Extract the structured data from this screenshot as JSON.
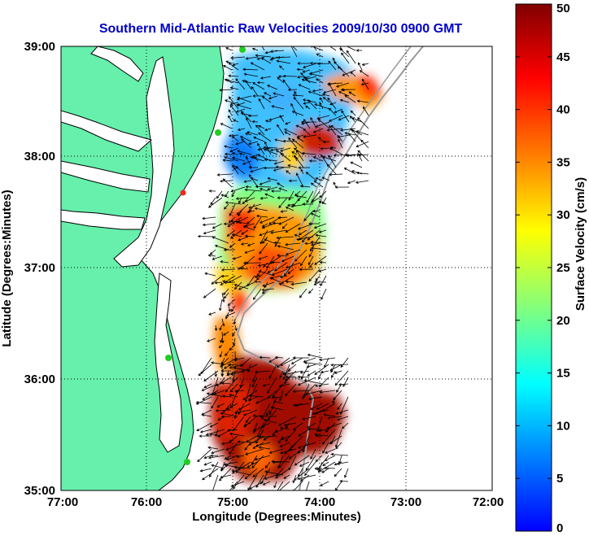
{
  "title": "Southern Mid-Atlantic Raw Velocities 2009/10/30 0900 GMT",
  "xlabel": "Longitude (Degrees:Minutes)",
  "ylabel": "Latitude (Degrees:Minutes)",
  "x_ticks": [
    "77:00",
    "76:00",
    "75:00",
    "74:00",
    "73:00",
    "72:00"
  ],
  "y_ticks": [
    "39:00",
    "38:00",
    "37:00",
    "36:00",
    "35:00"
  ],
  "colorbar": {
    "label": "Surface Velocity (cm/s)",
    "ticks": [
      "50",
      "45",
      "40",
      "35",
      "30",
      "25",
      "20",
      "15",
      "10",
      "5",
      "0"
    ],
    "range": [
      0,
      50
    ],
    "colormap": [
      "#0000ff",
      "#0080ff",
      "#00ffff",
      "#80ff80",
      "#ffff00",
      "#ff8000",
      "#ff0000",
      "#800000"
    ]
  },
  "colors": {
    "land": "#66f0ac",
    "coastline": "#000000",
    "shelf_contour": "#999999",
    "title": "#0000cc",
    "station": "#22cc22",
    "station_offline": "#ff2222"
  }
}
